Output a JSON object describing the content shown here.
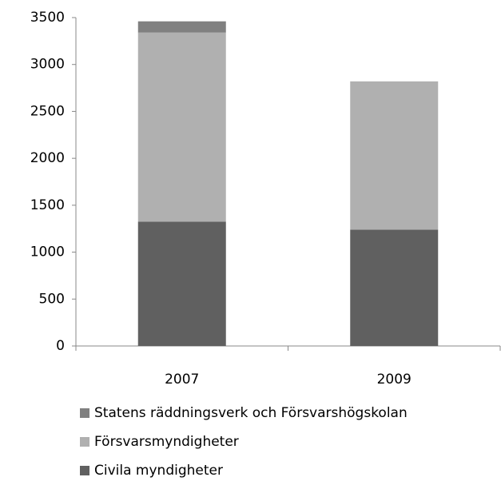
{
  "chart_data": {
    "type": "stacked_bar",
    "categories": [
      "2007",
      "2009"
    ],
    "series": [
      {
        "name": "Civila myndigheter",
        "color": "#606060",
        "values": [
          1325,
          1240
        ]
      },
      {
        "name": "Försvarsmyndigheter",
        "color": "#b0b0b0",
        "values": [
          2015,
          1580
        ]
      },
      {
        "name": "Statens räddningsverk och Försvarshögskolan",
        "color": "#808080",
        "values": [
          120,
          0
        ]
      }
    ],
    "ylim": [
      0,
      3500
    ],
    "yticks": [
      0,
      500,
      1000,
      1500,
      2000,
      2500,
      3000,
      3500
    ],
    "grid": false,
    "legend": "bottom"
  }
}
